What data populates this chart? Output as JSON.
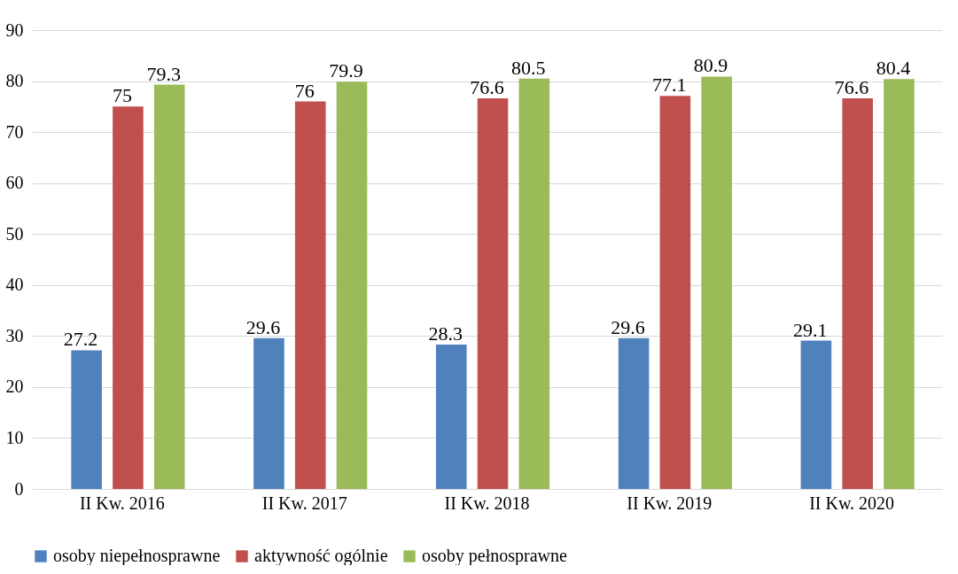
{
  "chart_data": {
    "type": "bar",
    "categories": [
      "II Kw. 2016",
      "II Kw. 2017",
      "II Kw. 2018",
      "II Kw. 2019",
      "II Kw. 2020"
    ],
    "series": [
      {
        "name": "osoby niepełnosprawne",
        "color": "#4f81bd",
        "values": [
          27.2,
          29.6,
          28.3,
          29.6,
          29.1
        ]
      },
      {
        "name": "aktywność ogólnie",
        "color": "#c0504d",
        "values": [
          75,
          76,
          76.6,
          77.1,
          76.6
        ]
      },
      {
        "name": "osoby pełnosprawne",
        "color": "#9bbb59",
        "values": [
          79.3,
          79.9,
          80.5,
          80.9,
          80.4
        ]
      }
    ],
    "ylim": [
      0,
      90
    ],
    "yticks": [
      0,
      10,
      20,
      30,
      40,
      50,
      60,
      70,
      80,
      90
    ],
    "grid": "y",
    "legend": "bottom",
    "data_labels": true
  }
}
